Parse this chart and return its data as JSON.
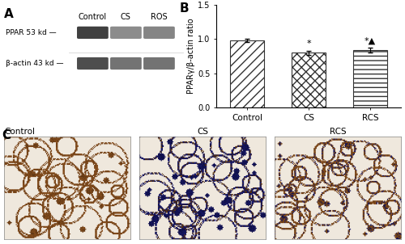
{
  "panel_A_label": "A",
  "panel_B_label": "B",
  "panel_C_label": "C",
  "bar_categories": [
    "Control",
    "CS",
    "RCS"
  ],
  "bar_values": [
    0.98,
    0.8,
    0.84
  ],
  "bar_errors": [
    0.025,
    0.03,
    0.03
  ],
  "ylabel": "PPARγ/β-actin ratio",
  "ylim": [
    0,
    1.5
  ],
  "yticks": [
    0.0,
    0.5,
    1.0,
    1.5
  ],
  "panel_A_col_labels": [
    "Control",
    "CS",
    "ROS"
  ],
  "panel_A_row_labels": [
    "PPAR 53 kd —",
    "β-actin 43 kd —"
  ],
  "bg_color": "#ffffff",
  "annotation_cs": "*",
  "annotation_rcs": "*▲",
  "immuno_labels": [
    "Control",
    "CS",
    "RCS"
  ]
}
